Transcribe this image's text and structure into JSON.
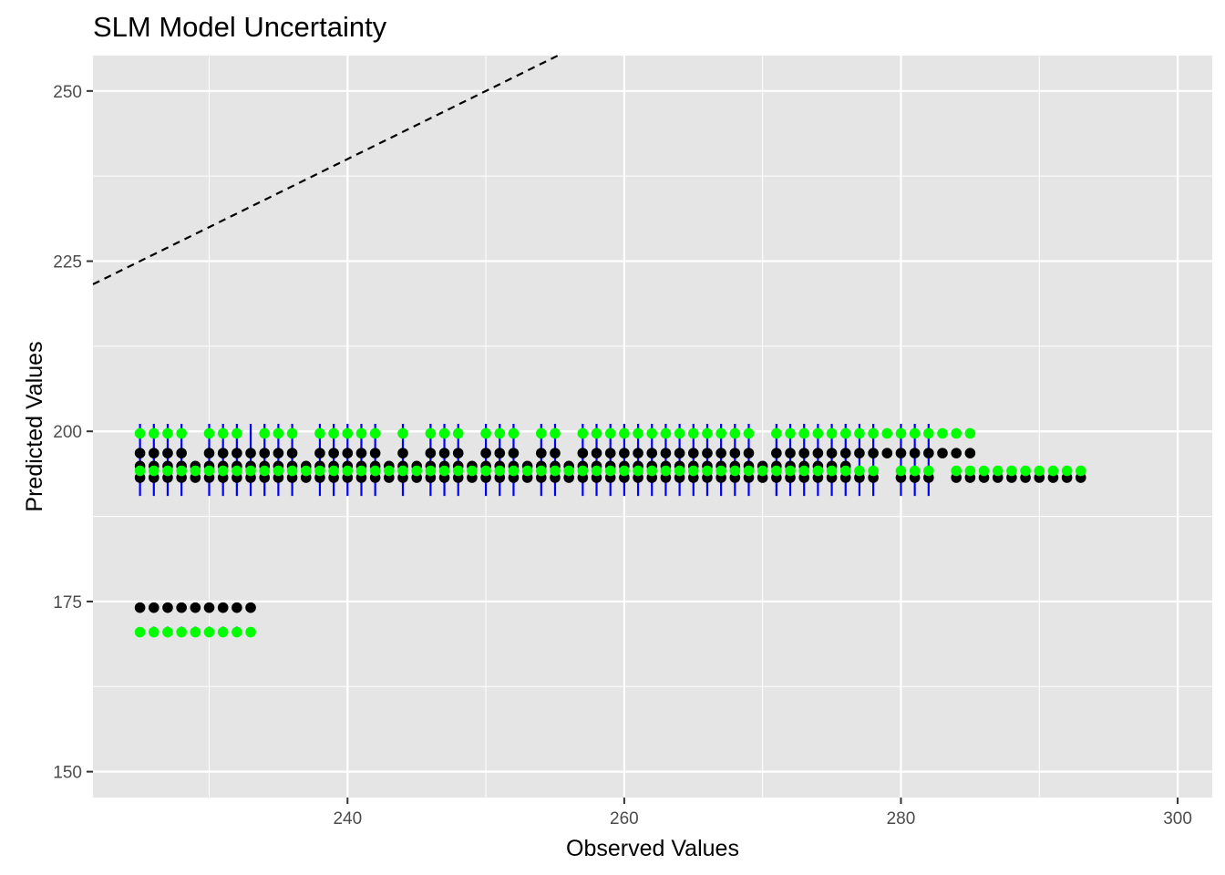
{
  "chart_data": {
    "type": "scatter",
    "title": "SLM Model Uncertainty",
    "xlabel": "Observed Values",
    "ylabel": "Predicted Values",
    "xlim": [
      221.6,
      302.5
    ],
    "ylim": [
      146.2,
      255.2
    ],
    "x_ticks": [
      240,
      260,
      280,
      300
    ],
    "y_ticks": [
      150,
      175,
      200,
      225,
      250
    ],
    "grid": true,
    "colors": {
      "panel": "#E5E5E5",
      "grid": "#FFFFFF",
      "predicted": "#000000",
      "interval_bounds": "#00FF00",
      "error_bars": "#0000FF",
      "identity_line": "#000000"
    },
    "identity_line": {
      "slope": 1,
      "intercept": 0,
      "style": "dashed"
    },
    "error_bar_x": [
      225,
      226,
      227,
      228,
      230,
      231,
      232,
      233,
      234,
      235,
      236,
      238,
      239,
      240,
      241,
      242,
      244,
      246,
      247,
      248,
      250,
      251,
      252,
      254,
      255,
      257,
      258,
      259,
      260,
      261,
      262,
      263,
      264,
      265,
      266,
      267,
      268,
      269,
      271,
      272,
      273,
      274,
      275,
      276,
      277,
      278,
      280,
      281,
      282
    ],
    "series": [
      {
        "marker": "point",
        "color": "#000000",
        "y": 193.2,
        "x_ranges": [
          [
            225,
            236
          ],
          [
            237,
            252
          ],
          [
            253,
            278
          ],
          [
            280,
            282
          ],
          [
            284,
            293
          ]
        ]
      },
      {
        "marker": "point",
        "color": "#000000",
        "y": 194.9,
        "x_ranges": [
          [
            225,
            276
          ]
        ]
      },
      {
        "marker": "point",
        "color": "#000000",
        "y": 196.8,
        "x_values": [
          225,
          226,
          227,
          228,
          230,
          231,
          232,
          233,
          234,
          235,
          236,
          238,
          239,
          240,
          241,
          242,
          244,
          246,
          247,
          248,
          250,
          251,
          252,
          254,
          255,
          257,
          258,
          259,
          260,
          261,
          262,
          263,
          264,
          265,
          266,
          267,
          268,
          269,
          271,
          272,
          273,
          274,
          275,
          276,
          277,
          278,
          279,
          280,
          281,
          282,
          283,
          284,
          285
        ]
      },
      {
        "marker": "point",
        "color": "#000000",
        "y": 174.1,
        "x_ranges": [
          [
            225,
            233
          ]
        ]
      },
      {
        "marker": "point",
        "color": "#00FF00",
        "y": 199.7,
        "x_values": [
          225,
          226,
          227,
          228,
          230,
          231,
          232,
          234,
          235,
          236,
          238,
          239,
          240,
          241,
          242,
          244,
          246,
          247,
          248,
          250,
          251,
          252,
          254,
          255,
          257,
          258,
          259,
          260,
          261,
          262,
          263,
          264,
          265,
          266,
          267,
          268,
          269,
          271,
          272,
          273,
          274,
          275,
          276,
          277,
          278,
          279,
          280,
          281,
          282,
          283,
          284,
          285
        ]
      },
      {
        "marker": "point",
        "color": "#00FF00",
        "y": 194.2,
        "x_ranges": [
          [
            225,
            278
          ],
          [
            280,
            282
          ],
          [
            284,
            293
          ]
        ]
      },
      {
        "marker": "point",
        "color": "#00FF00",
        "y": 170.5,
        "x_ranges": [
          [
            225,
            233
          ]
        ]
      },
      {
        "marker": "errorbar",
        "color": "#0000FF",
        "y_low": 190.5,
        "y_high": 201.1,
        "x_ref": "error_bar_x"
      },
      {
        "marker": "errorbar",
        "color": "#0000FF",
        "y_low": 170.0,
        "y_high": 171.3,
        "x_ranges": [
          [
            226,
            232
          ]
        ]
      }
    ]
  }
}
